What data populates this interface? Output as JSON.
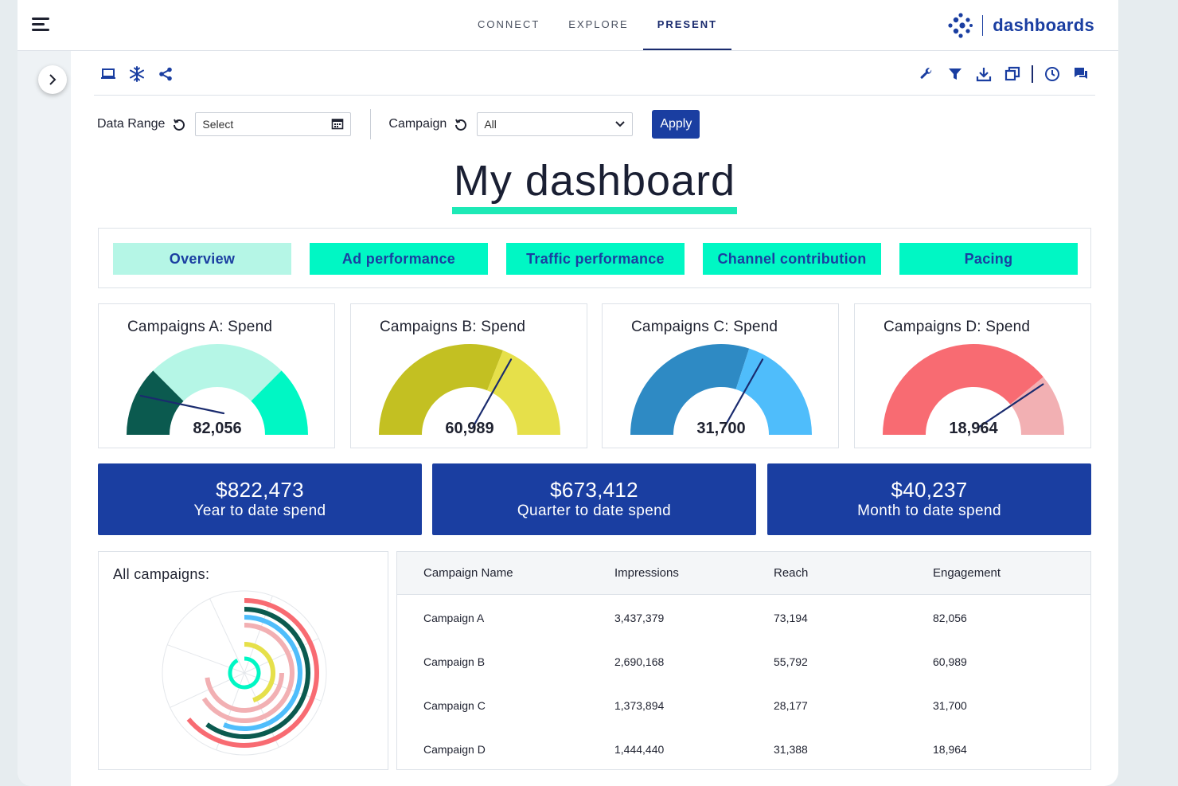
{
  "nav": {
    "items": [
      {
        "label": "CONNECT"
      },
      {
        "label": "EXPLORE"
      },
      {
        "label": "PRESENT"
      }
    ],
    "active": "PRESENT"
  },
  "brand": {
    "name": "dashboards",
    "color": "#1a3ea1"
  },
  "toolbar": {
    "left_icons": [
      "monitor-icon",
      "snowflake-icon",
      "share-icon"
    ],
    "right_icons": [
      "wrench-icon",
      "filter-icon",
      "download-icon",
      "duplicate-icon",
      "clock-icon",
      "comments-icon"
    ]
  },
  "filters": {
    "date_range_label": "Data Range",
    "date_range_value": "Select",
    "campaign_label": "Campaign",
    "campaign_value": "All",
    "apply_label": "Apply"
  },
  "page_title": "My dashboard",
  "tabs": [
    {
      "label": "Overview",
      "active": true
    },
    {
      "label": "Ad performance",
      "active": false
    },
    {
      "label": "Traffic performance",
      "active": false
    },
    {
      "label": "Channel contribution",
      "active": false
    },
    {
      "label": "Pacing",
      "active": false
    }
  ],
  "gauges": [
    {
      "title": "Campaigns A: Spend",
      "value": "82,056",
      "level": 0.15,
      "colors": [
        "#0b5a4f",
        "#b5f6e6",
        "#00f7c4"
      ],
      "bands": [
        0.25,
        0.75
      ]
    },
    {
      "title": "Campaigns B: Spend",
      "value": "60,989",
      "level": 0.66,
      "colors": [
        "#c3c022",
        "#e6e04a"
      ],
      "bands": [
        0.62
      ]
    },
    {
      "title": "Campaigns C: Spend",
      "value": "31,700",
      "level": 0.66,
      "colors": [
        "#2e8ac4",
        "#4fbdfb"
      ],
      "bands": [
        0.6
      ]
    },
    {
      "title": "Campaigns D: Spend",
      "value": "18,964",
      "level": 0.8,
      "colors": [
        "#f86b72",
        "#f2b0b3"
      ],
      "bands": [
        0.78
      ]
    }
  ],
  "spend": [
    {
      "value": "$822,473",
      "label": "Year to date spend"
    },
    {
      "value": "$673,412",
      "label": "Quarter to date spend"
    },
    {
      "value": "$40,237",
      "label": "Month to date spend"
    }
  ],
  "radial": {
    "title": "All campaigns:",
    "rings": [
      {
        "color": "#f86b72",
        "extent": 0.64
      },
      {
        "color": "#0b5a4f",
        "extent": 0.6
      },
      {
        "color": "#4fbdfb",
        "extent": 0.56
      },
      {
        "color": "#f2b0b3",
        "extent": 0.66
      },
      {
        "color": "#f2b0b3",
        "extent": 0.48
      },
      {
        "color": "#e6e04a",
        "extent": 0.45
      },
      {
        "color": "#00f7c4",
        "extent": 0.92
      }
    ]
  },
  "table": {
    "headers": [
      "Campaign Name",
      "Impressions",
      "Reach",
      "Engagement"
    ],
    "rows": [
      [
        "Campaign A",
        "3,437,379",
        "73,194",
        "82,056"
      ],
      [
        "Campaign B",
        "2,690,168",
        "55,792",
        "60,989"
      ],
      [
        "Campaign C",
        "1,373,894",
        "28,177",
        "31,700"
      ],
      [
        "Campaign D",
        "1,444,440",
        "31,388",
        "18,964"
      ]
    ]
  }
}
